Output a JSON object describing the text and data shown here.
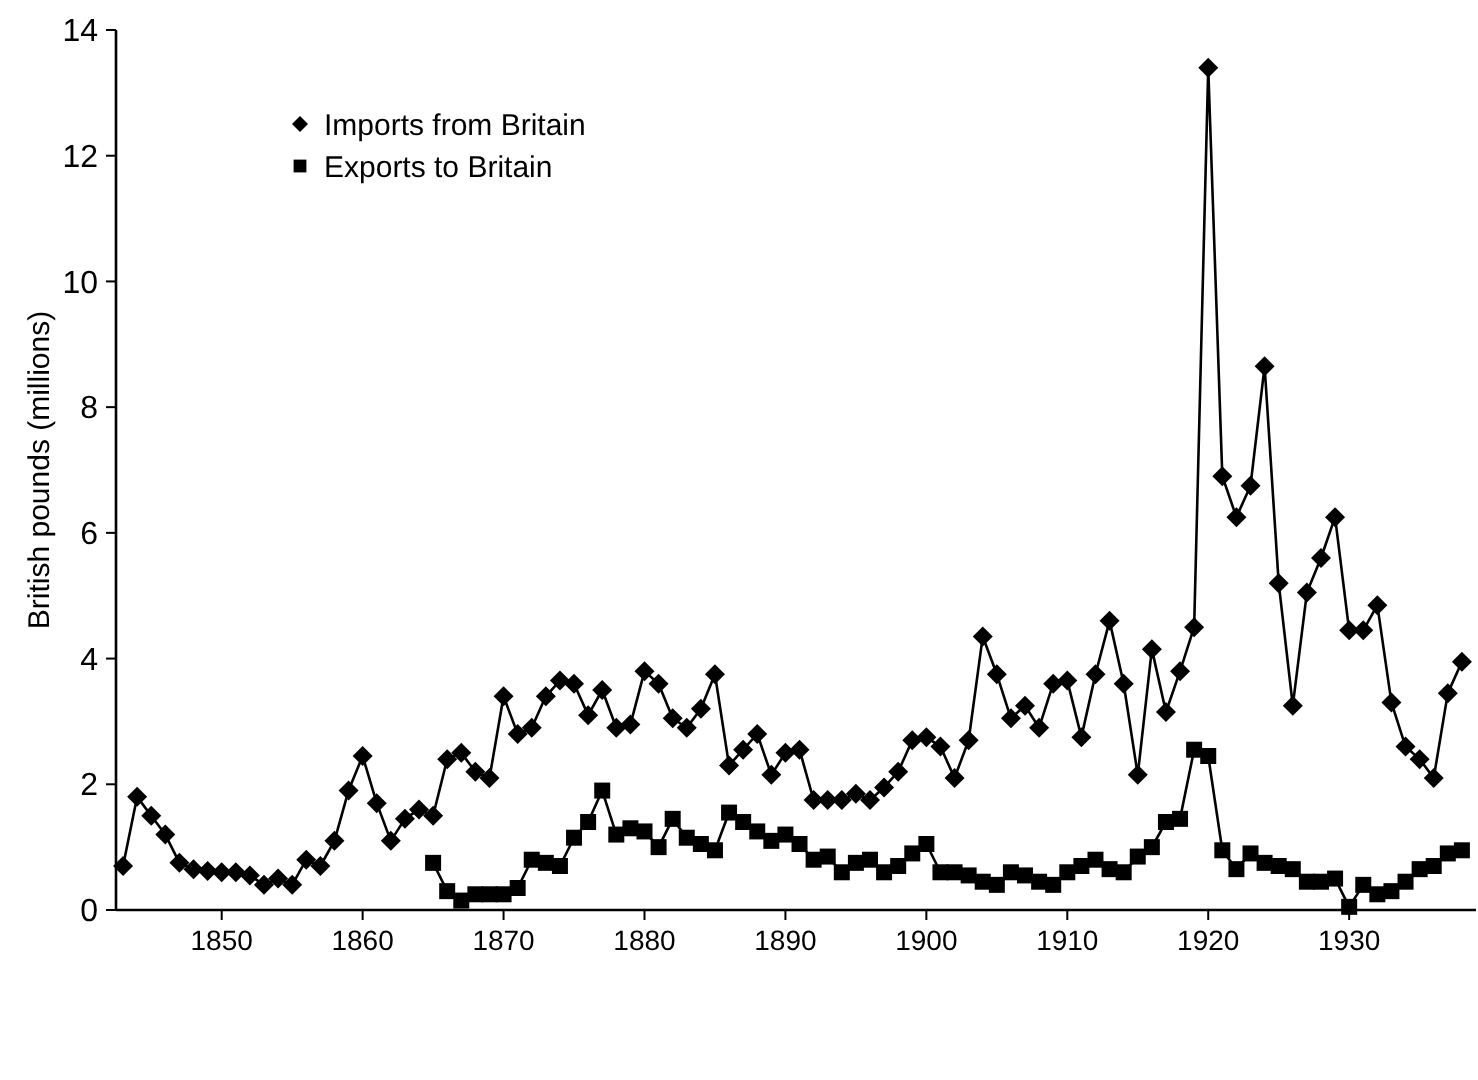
{
  "chart_data": {
    "type": "line",
    "ylabel": "British pounds (millions)",
    "xlim": [
      1842.5,
      1939
    ],
    "xticks": [
      1850,
      1860,
      1870,
      1880,
      1890,
      1900,
      1910,
      1920,
      1930
    ],
    "ylim": [
      0,
      14
    ],
    "yticks": [
      0,
      2,
      4,
      6,
      8,
      10,
      12,
      14
    ],
    "grid": false,
    "legend": "top left",
    "line_style": "solid",
    "series": [
      {
        "name": "Imports from Britain",
        "color": "#000000",
        "marker": "diamond",
        "x": [
          1843,
          1844,
          1845,
          1846,
          1847,
          1848,
          1849,
          1850,
          1851,
          1852,
          1853,
          1854,
          1855,
          1856,
          1857,
          1858,
          1859,
          1860,
          1861,
          1862,
          1863,
          1864,
          1865,
          1866,
          1867,
          1868,
          1869,
          1870,
          1871,
          1872,
          1873,
          1874,
          1875,
          1876,
          1877,
          1878,
          1879,
          1880,
          1881,
          1882,
          1883,
          1884,
          1885,
          1886,
          1887,
          1888,
          1889,
          1890,
          1891,
          1892,
          1893,
          1894,
          1895,
          1896,
          1897,
          1898,
          1899,
          1900,
          1901,
          1902,
          1903,
          1904,
          1905,
          1906,
          1907,
          1908,
          1909,
          1910,
          1911,
          1912,
          1913,
          1914,
          1915,
          1916,
          1917,
          1918,
          1919,
          1920,
          1921,
          1922,
          1923,
          1924,
          1925,
          1926,
          1927,
          1928,
          1929,
          1930,
          1931,
          1932,
          1933,
          1934,
          1935,
          1936,
          1937,
          1938
        ],
        "values": [
          0.7,
          1.8,
          1.5,
          1.2,
          0.75,
          0.65,
          0.62,
          0.6,
          0.6,
          0.55,
          0.4,
          0.5,
          0.4,
          0.8,
          0.7,
          1.1,
          1.9,
          2.45,
          1.7,
          1.1,
          1.45,
          1.6,
          1.5,
          2.4,
          2.5,
          2.2,
          2.1,
          3.4,
          2.8,
          2.9,
          3.4,
          3.65,
          3.6,
          3.1,
          3.5,
          2.9,
          2.95,
          3.8,
          3.6,
          3.05,
          2.9,
          3.2,
          3.75,
          2.3,
          2.55,
          2.8,
          2.15,
          2.5,
          2.55,
          1.75,
          1.75,
          1.75,
          1.85,
          1.75,
          1.95,
          2.2,
          2.7,
          2.75,
          2.6,
          2.1,
          2.7,
          4.35,
          3.75,
          3.05,
          3.25,
          2.9,
          3.6,
          3.65,
          2.75,
          3.75,
          4.6,
          3.6,
          2.15,
          4.15,
          3.15,
          3.8,
          4.5,
          13.4,
          6.9,
          6.25,
          6.75,
          8.65,
          5.2,
          3.25,
          5.05,
          5.6,
          6.25,
          4.45,
          4.45,
          4.85,
          3.3,
          2.6,
          2.4,
          2.1,
          3.45,
          3.95
        ]
      },
      {
        "name": "Exports to Britain",
        "color": "#000000",
        "marker": "square",
        "x": [
          1865,
          1866,
          1867,
          1868,
          1869,
          1870,
          1871,
          1872,
          1873,
          1874,
          1875,
          1876,
          1877,
          1878,
          1879,
          1880,
          1881,
          1882,
          1883,
          1884,
          1885,
          1886,
          1887,
          1888,
          1889,
          1890,
          1891,
          1892,
          1893,
          1894,
          1895,
          1896,
          1897,
          1898,
          1899,
          1900,
          1901,
          1902,
          1903,
          1904,
          1905,
          1906,
          1907,
          1908,
          1909,
          1910,
          1911,
          1912,
          1913,
          1914,
          1915,
          1916,
          1917,
          1918,
          1919,
          1920,
          1921,
          1922,
          1923,
          1924,
          1925,
          1926,
          1927,
          1928,
          1929,
          1930,
          1931,
          1932,
          1933,
          1934,
          1935,
          1936,
          1937,
          1938
        ],
        "values": [
          0.75,
          0.3,
          0.15,
          0.25,
          0.25,
          0.25,
          0.35,
          0.8,
          0.75,
          0.7,
          1.15,
          1.4,
          1.9,
          1.2,
          1.3,
          1.25,
          1.0,
          1.45,
          1.15,
          1.05,
          0.95,
          1.55,
          1.4,
          1.25,
          1.1,
          1.2,
          1.05,
          0.8,
          0.85,
          0.6,
          0.75,
          0.8,
          0.6,
          0.7,
          0.9,
          1.05,
          0.6,
          0.6,
          0.55,
          0.45,
          0.4,
          0.6,
          0.55,
          0.45,
          0.4,
          0.6,
          0.7,
          0.8,
          0.65,
          0.6,
          0.85,
          1.0,
          1.4,
          1.45,
          2.55,
          2.45,
          0.95,
          0.65,
          0.9,
          0.75,
          0.7,
          0.65,
          0.45,
          0.45,
          0.5,
          0.05,
          0.4,
          0.25,
          0.3,
          0.45,
          0.65,
          0.7,
          0.9,
          0.95
        ]
      }
    ]
  }
}
